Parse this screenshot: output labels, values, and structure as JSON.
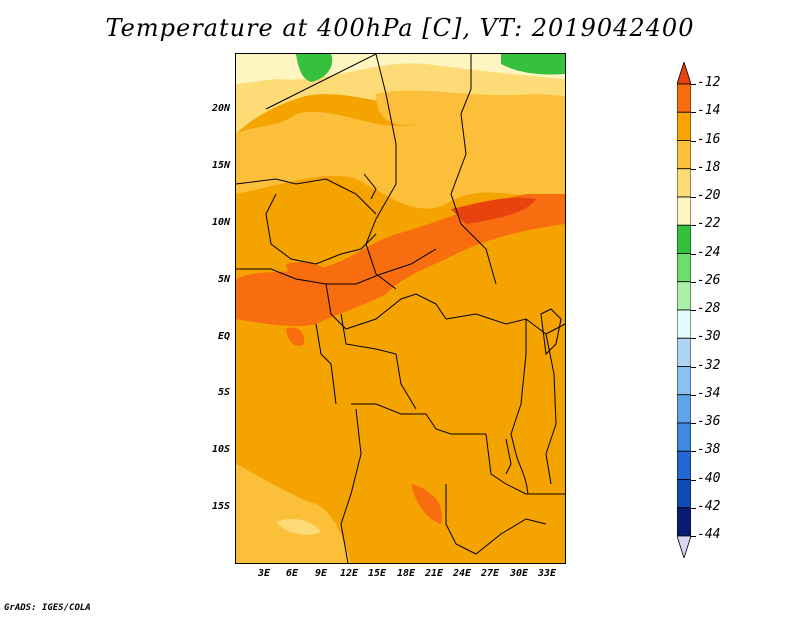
{
  "title": "Temperature at 400hPa [C], VT: 2019042400",
  "credit": "GrADS: IGES/COLA",
  "lat_labels": [
    "20N",
    "15N",
    "10N",
    "5N",
    "EQ",
    "5S",
    "10S",
    "15S"
  ],
  "lon_labels": [
    "3E",
    "6E",
    "9E",
    "12E",
    "15E",
    "18E",
    "21E",
    "24E",
    "27E",
    "30E",
    "33E"
  ],
  "colorbar": {
    "labels": [
      "-12",
      "-14",
      "-16",
      "-18",
      "-20",
      "-22",
      "-24",
      "-26",
      "-28",
      "-30",
      "-32",
      "-34",
      "-36",
      "-38",
      "-40",
      "-42",
      "-44"
    ],
    "colors": [
      "#e8420f",
      "#f76d0f",
      "#f7a300",
      "#fbbf3a",
      "#fddc78",
      "#fdf6c0",
      "#35c13d",
      "#6cde6b",
      "#aaf0a6",
      "#e3f9fb",
      "#aed6f4",
      "#8bc0ef",
      "#5fa4e8",
      "#3e8ae0",
      "#2366d6",
      "#104ab8",
      "#0b1a73",
      "#dcd4f0"
    ]
  }
}
